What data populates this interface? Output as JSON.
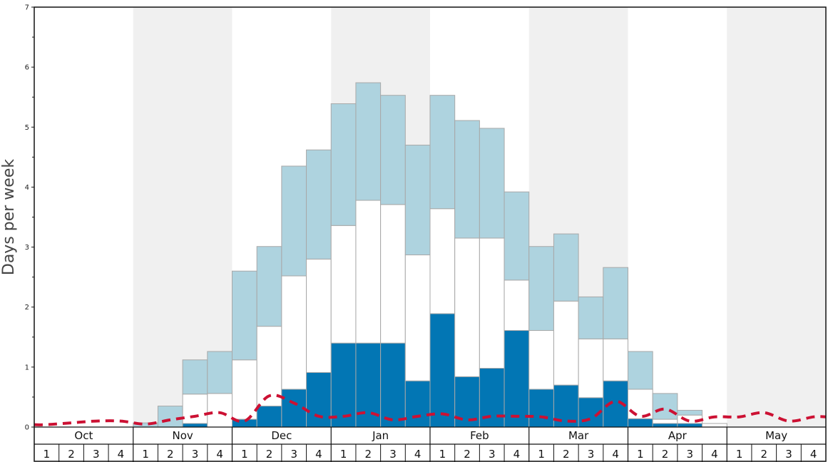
{
  "chart_data": {
    "type": "bar",
    "ylabel": "Days per week",
    "ylim": [
      0,
      7
    ],
    "yticks": [
      0,
      1,
      2,
      3,
      4,
      5,
      6,
      7
    ],
    "months": [
      "Oct",
      "Nov",
      "Dec",
      "Jan",
      "Feb",
      "Mar",
      "Apr",
      "May"
    ],
    "week_labels": [
      "1",
      "2",
      "3",
      "4"
    ],
    "stacked": true,
    "series": [
      {
        "key": "bottom",
        "color": "#0276b4",
        "values": [
          0,
          0,
          0,
          0,
          0,
          0,
          0.06,
          0,
          0.13,
          0.35,
          0.63,
          0.91,
          1.4,
          1.4,
          1.4,
          0.77,
          1.89,
          0.84,
          0.98,
          1.61,
          0.63,
          0.7,
          0.49,
          0.77,
          0.14,
          0.06,
          0.06,
          0,
          0,
          0,
          0,
          0
        ]
      },
      {
        "key": "middle",
        "color": "#ffffff",
        "values": [
          0,
          0,
          0,
          0,
          0,
          0,
          0.49,
          0.56,
          0.99,
          1.33,
          1.89,
          1.89,
          1.96,
          2.38,
          2.31,
          2.1,
          1.75,
          2.31,
          2.17,
          0.84,
          0.98,
          1.4,
          0.98,
          0.7,
          0.49,
          0.07,
          0.14,
          0.06,
          0,
          0,
          0,
          0
        ]
      },
      {
        "key": "top",
        "color": "#aed3df",
        "values": [
          0,
          0,
          0,
          0,
          0.07,
          0.35,
          0.57,
          0.7,
          1.48,
          1.33,
          1.83,
          1.82,
          2.03,
          1.96,
          1.82,
          1.83,
          1.89,
          1.96,
          1.83,
          1.47,
          1.4,
          1.12,
          0.7,
          1.19,
          0.63,
          0.43,
          0.08,
          0,
          0,
          0,
          0,
          0
        ]
      }
    ],
    "line": {
      "style": "dashed",
      "color": "#cc1133",
      "values": [
        0.04,
        0.07,
        0.1,
        0.1,
        0.05,
        0.12,
        0.18,
        0.24,
        0.1,
        0.52,
        0.4,
        0.18,
        0.18,
        0.24,
        0.12,
        0.18,
        0.22,
        0.12,
        0.18,
        0.18,
        0.17,
        0.1,
        0.14,
        0.43,
        0.18,
        0.3,
        0.1,
        0.17,
        0.17,
        0.24,
        0.1,
        0.17
      ]
    },
    "shaded_months": [
      "Nov",
      "Jan",
      "Mar",
      "May"
    ],
    "colors": {
      "shade": "#f0f0f0",
      "bar_stroke": "#a8a8a8",
      "axis": "#111111"
    }
  }
}
